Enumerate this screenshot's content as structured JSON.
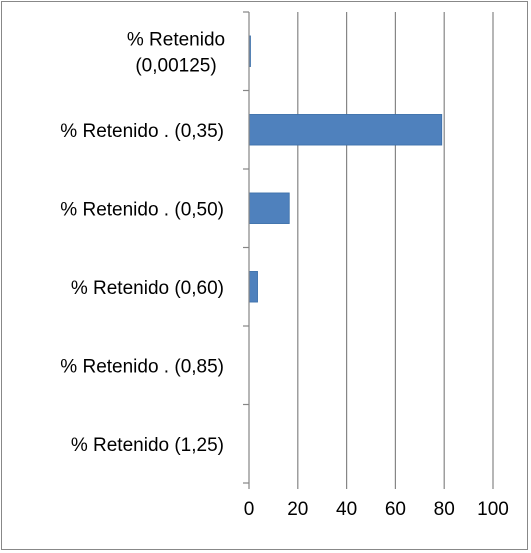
{
  "chart_data": {
    "type": "bar",
    "orientation": "horizontal",
    "categories": [
      [
        "% Retenido",
        "(0,00125)"
      ],
      [
        "% Retenido . (0,35)"
      ],
      [
        "% Retenido . (0,50)"
      ],
      [
        "% Retenido  (0,60)"
      ],
      [
        "% Retenido . (0,85)"
      ],
      [
        "% Retenido  (1,25)"
      ]
    ],
    "values": [
      0.6,
      79,
      16.5,
      3.5,
      0,
      0
    ],
    "xlim": [
      0,
      100
    ],
    "xticks": [
      0,
      20,
      40,
      60,
      80,
      100
    ],
    "xtick_labels": [
      "0",
      "20",
      "40",
      "60",
      "80",
      "100"
    ],
    "grid": "vertical",
    "legend": "none",
    "colors": {
      "bar": "#4f81bd",
      "bar_edge": "#3a6ea8",
      "grid": "#868686",
      "axis": "#868686",
      "border": "#888888",
      "text": "#000000"
    }
  }
}
